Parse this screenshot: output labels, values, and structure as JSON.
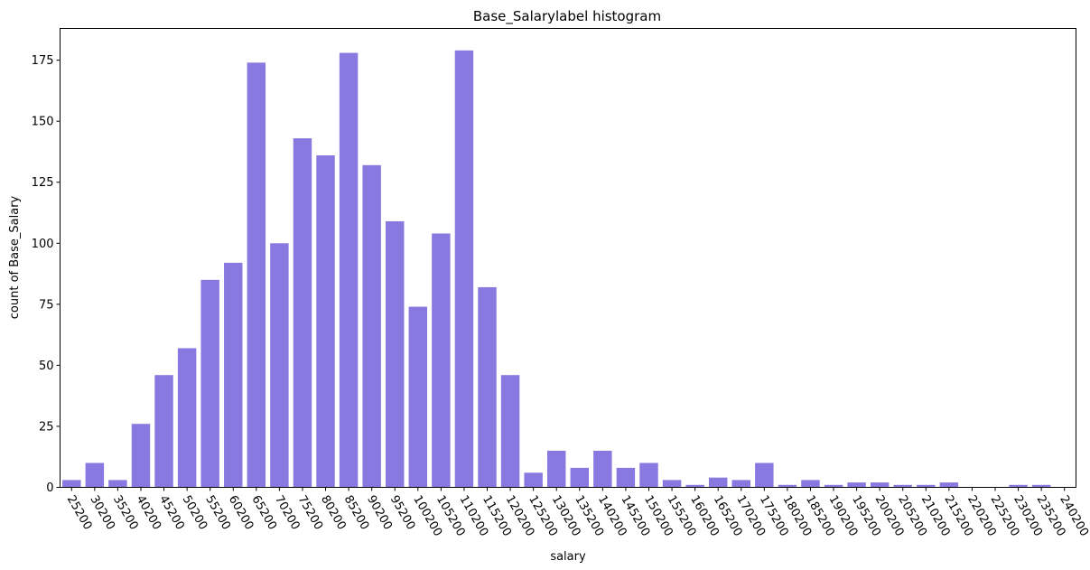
{
  "chart_data": {
    "type": "bar",
    "title": "Base_Salarylabel histogram",
    "xlabel": "salary",
    "ylabel": "count of Base_Salary",
    "categories": [
      "25200",
      "30200",
      "35200",
      "40200",
      "45200",
      "50200",
      "55200",
      "60200",
      "65200",
      "70200",
      "75200",
      "80200",
      "85200",
      "90200",
      "95200",
      "100200",
      "105200",
      "110200",
      "115200",
      "120200",
      "125200",
      "130200",
      "135200",
      "140200",
      "145200",
      "150200",
      "155200",
      "160200",
      "165200",
      "170200",
      "175200",
      "180200",
      "185200",
      "190200",
      "195200",
      "200200",
      "205200",
      "210200",
      "215200",
      "220200",
      "225200",
      "230200",
      "235200",
      "240200"
    ],
    "values": [
      3,
      10,
      3,
      26,
      46,
      57,
      85,
      92,
      174,
      100,
      143,
      136,
      178,
      132,
      109,
      74,
      104,
      179,
      82,
      46,
      6,
      15,
      8,
      15,
      8,
      10,
      3,
      1,
      4,
      3,
      10,
      1,
      3,
      1,
      2,
      2,
      1,
      1,
      2,
      0,
      0,
      1,
      1,
      0
    ],
    "ylim": [
      0,
      188
    ],
    "yticks": [
      0,
      25,
      50,
      75,
      100,
      125,
      150,
      175
    ],
    "bar_color": "#8879e0",
    "grid": false
  }
}
